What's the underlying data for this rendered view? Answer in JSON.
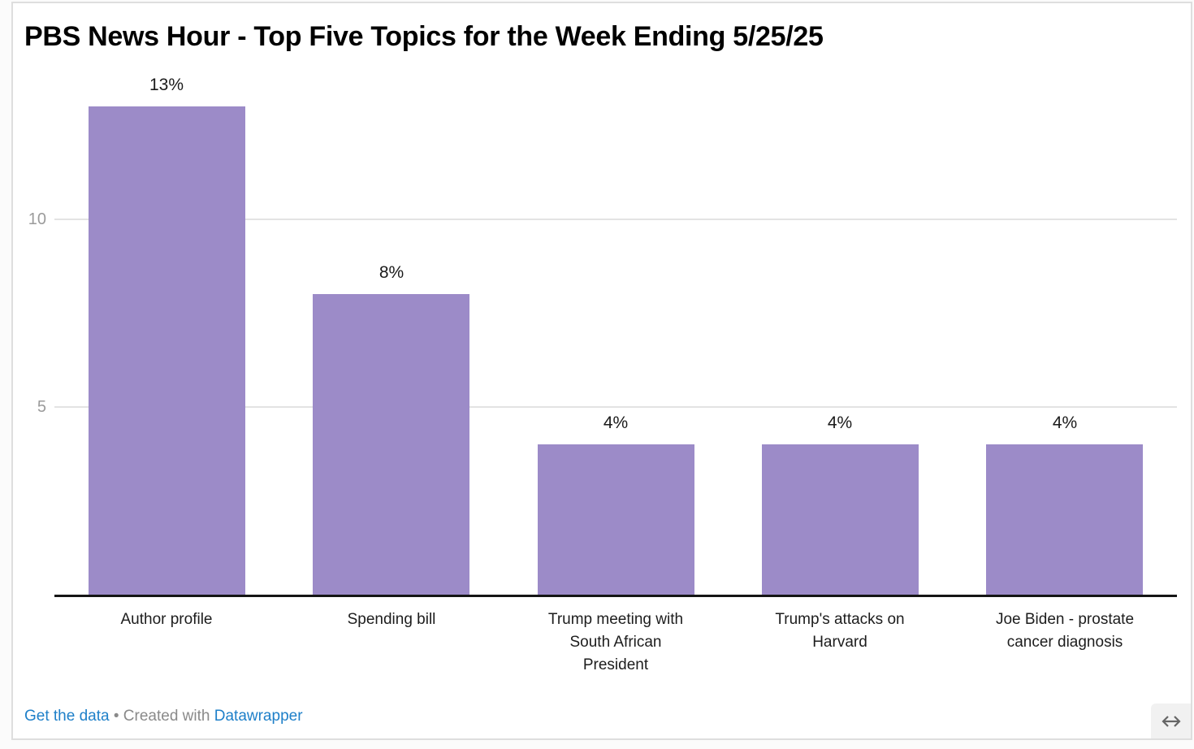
{
  "chart_data": {
    "type": "bar",
    "title": "PBS News Hour - Top Five Topics for the Week Ending 5/25/25",
    "categories": [
      "Author profile",
      "Spending bill",
      "Trump meeting with South African President",
      "Trump's attacks on Harvard",
      "Joe Biden - prostate cancer diagnosis"
    ],
    "category_lines": [
      [
        "Author profile"
      ],
      [
        "Spending bill"
      ],
      [
        "Trump meeting with",
        "South African",
        "President"
      ],
      [
        "Trump's attacks on",
        "Harvard"
      ],
      [
        "Joe Biden - prostate",
        "cancer diagnosis"
      ]
    ],
    "values": [
      13,
      8,
      4,
      4,
      4
    ],
    "value_labels": [
      "13%",
      "8%",
      "4%",
      "4%",
      "4%"
    ],
    "value_suffix": "%",
    "xlabel": "",
    "ylabel": "",
    "ylim": [
      0,
      13
    ],
    "yticks": [
      5,
      10
    ],
    "grid": true,
    "legend_position": "none",
    "bar_color": "#9c8bc8"
  },
  "footer": {
    "get_data_label": "Get the data",
    "separator": "•",
    "created_with": "Created with",
    "tool_name": "Datawrapper"
  },
  "resize_handle": {
    "icon": "horizontal-resize-arrow"
  },
  "colors": {
    "bar": "#9c8bc8",
    "link_blue": "#1f80c9",
    "footer_gray": "#8a8a8a",
    "tick_gray": "#9b9b9b",
    "gridline": "#e3e3e3",
    "axis_line": "#151515",
    "title_text": "#000000",
    "category_text": "#1d1d1d"
  }
}
